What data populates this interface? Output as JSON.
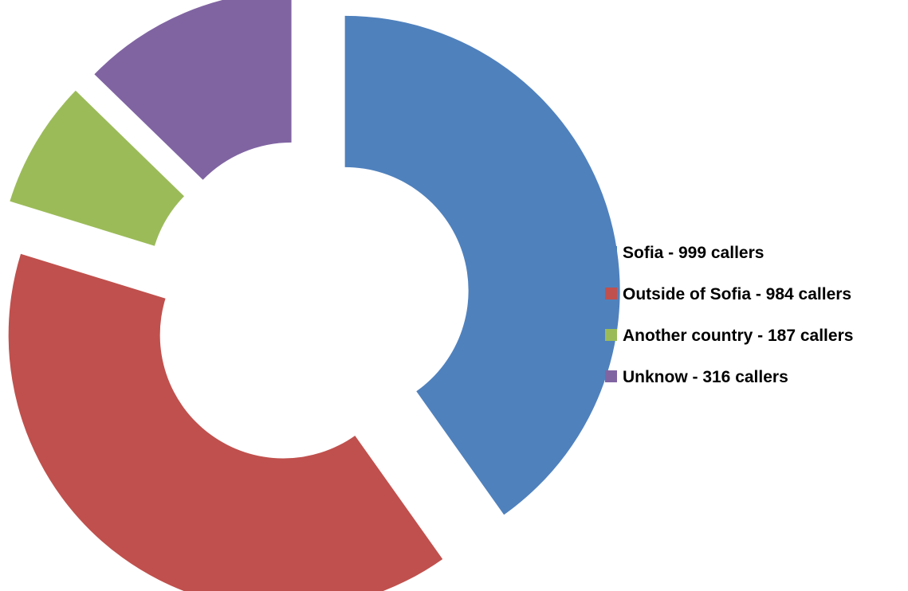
{
  "chart_data": {
    "type": "pie",
    "variant": "exploded-doughnut",
    "title": "",
    "categories": [
      "Sofia - 999 callers",
      "Outside of Sofia - 984 callers",
      "Another country - 187 callers",
      "Unknow - 316 callers"
    ],
    "values": [
      999,
      984,
      187,
      316
    ],
    "colors": [
      "#4F81BD",
      "#C0504D",
      "#9BBB59",
      "#8064A2"
    ],
    "legend": {
      "placement": "right",
      "entries": [
        {
          "label": "Sofia - 999 callers",
          "color": "#4F81BD"
        },
        {
          "label": "Outside of Sofia - 984 callers",
          "color": "#C0504D"
        },
        {
          "label": "Another country - 187 callers",
          "color": "#9BBB59"
        },
        {
          "label": "Unknow - 316 callers",
          "color": "#8064A2"
        }
      ]
    }
  }
}
